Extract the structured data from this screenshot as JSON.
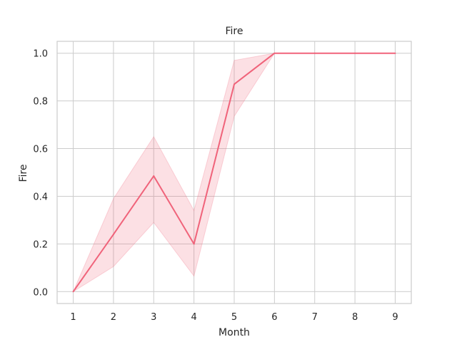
{
  "chart_data": {
    "type": "line",
    "title": "Fire",
    "xlabel": "Month",
    "ylabel": "Fire",
    "x": [
      1,
      2,
      3,
      4,
      5,
      6,
      7,
      8,
      9
    ],
    "series": [
      {
        "values": [
          0.0,
          0.24,
          0.485,
          0.2,
          0.87,
          1.0,
          1.0,
          1.0,
          1.0
        ],
        "ci_lower": [
          0.0,
          0.105,
          0.29,
          0.065,
          0.735,
          1.0,
          1.0,
          1.0,
          1.0
        ],
        "ci_upper": [
          0.0,
          0.39,
          0.65,
          0.34,
          0.97,
          1.0,
          1.0,
          1.0,
          1.0
        ],
        "color": "#f0637a"
      }
    ],
    "xticks": [
      "1",
      "2",
      "3",
      "4",
      "5",
      "6",
      "7",
      "8",
      "9"
    ],
    "yticks": [
      "0.0",
      "0.2",
      "0.4",
      "0.6",
      "0.8",
      "1.0"
    ],
    "xlim": [
      0.6,
      9.4
    ],
    "ylim": [
      -0.05,
      1.05
    ],
    "grid": true,
    "colors": {
      "grid": "#cccccc",
      "spine": "#cccccc",
      "band": "#f0637a"
    }
  }
}
